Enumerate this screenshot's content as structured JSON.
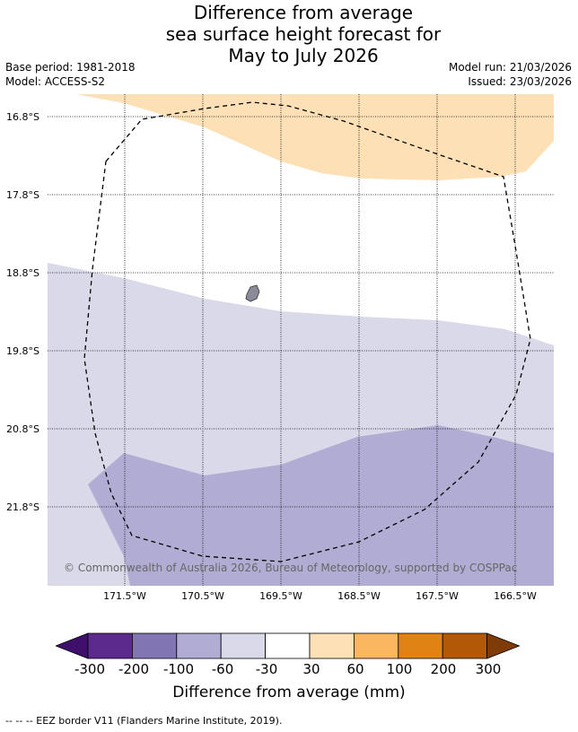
{
  "title": {
    "line1": "Difference from average",
    "line2": "sea surface height forecast for",
    "line3": "May to July 2026"
  },
  "info_left": {
    "base_period": "Base period: 1981-2018",
    "model": "Model: ACCESS-S2"
  },
  "info_right": {
    "model_run": "Model run: 21/03/2026",
    "issued": "Issued: 23/03/2026"
  },
  "map": {
    "lat_labels": [
      "16.8°S",
      "17.8°S",
      "18.8°S",
      "19.8°S",
      "20.8°S",
      "21.8°S"
    ],
    "lon_labels": [
      "171.5°W",
      "170.5°W",
      "169.5°W",
      "168.5°W",
      "167.5°W",
      "166.5°W"
    ],
    "copyright": "© Commonwealth of Australia 2026, Bureau of Meteorology, supported by COSPPac",
    "region_colors": {
      "positive_30_60": "#fde0b6",
      "negative_30_60": "#d9d9ea",
      "negative_60_100": "#b1acd3",
      "land": "#8a8a9a"
    }
  },
  "colorbar": {
    "ticks": [
      "-300",
      "-200",
      "-100",
      "-60",
      "-30",
      "30",
      "60",
      "100",
      "200",
      "300"
    ],
    "colors": [
      "#3f0f6b",
      "#5b2a8c",
      "#8175b3",
      "#b1acd3",
      "#d9d9ea",
      "#ffffff",
      "#fde0b6",
      "#fbb660",
      "#e08214",
      "#b35806",
      "#7f3b08"
    ],
    "label": "Difference from average (mm)"
  },
  "footnote": "--  --  -- EEZ border V11 (Flanders Marine Institute, 2019)."
}
